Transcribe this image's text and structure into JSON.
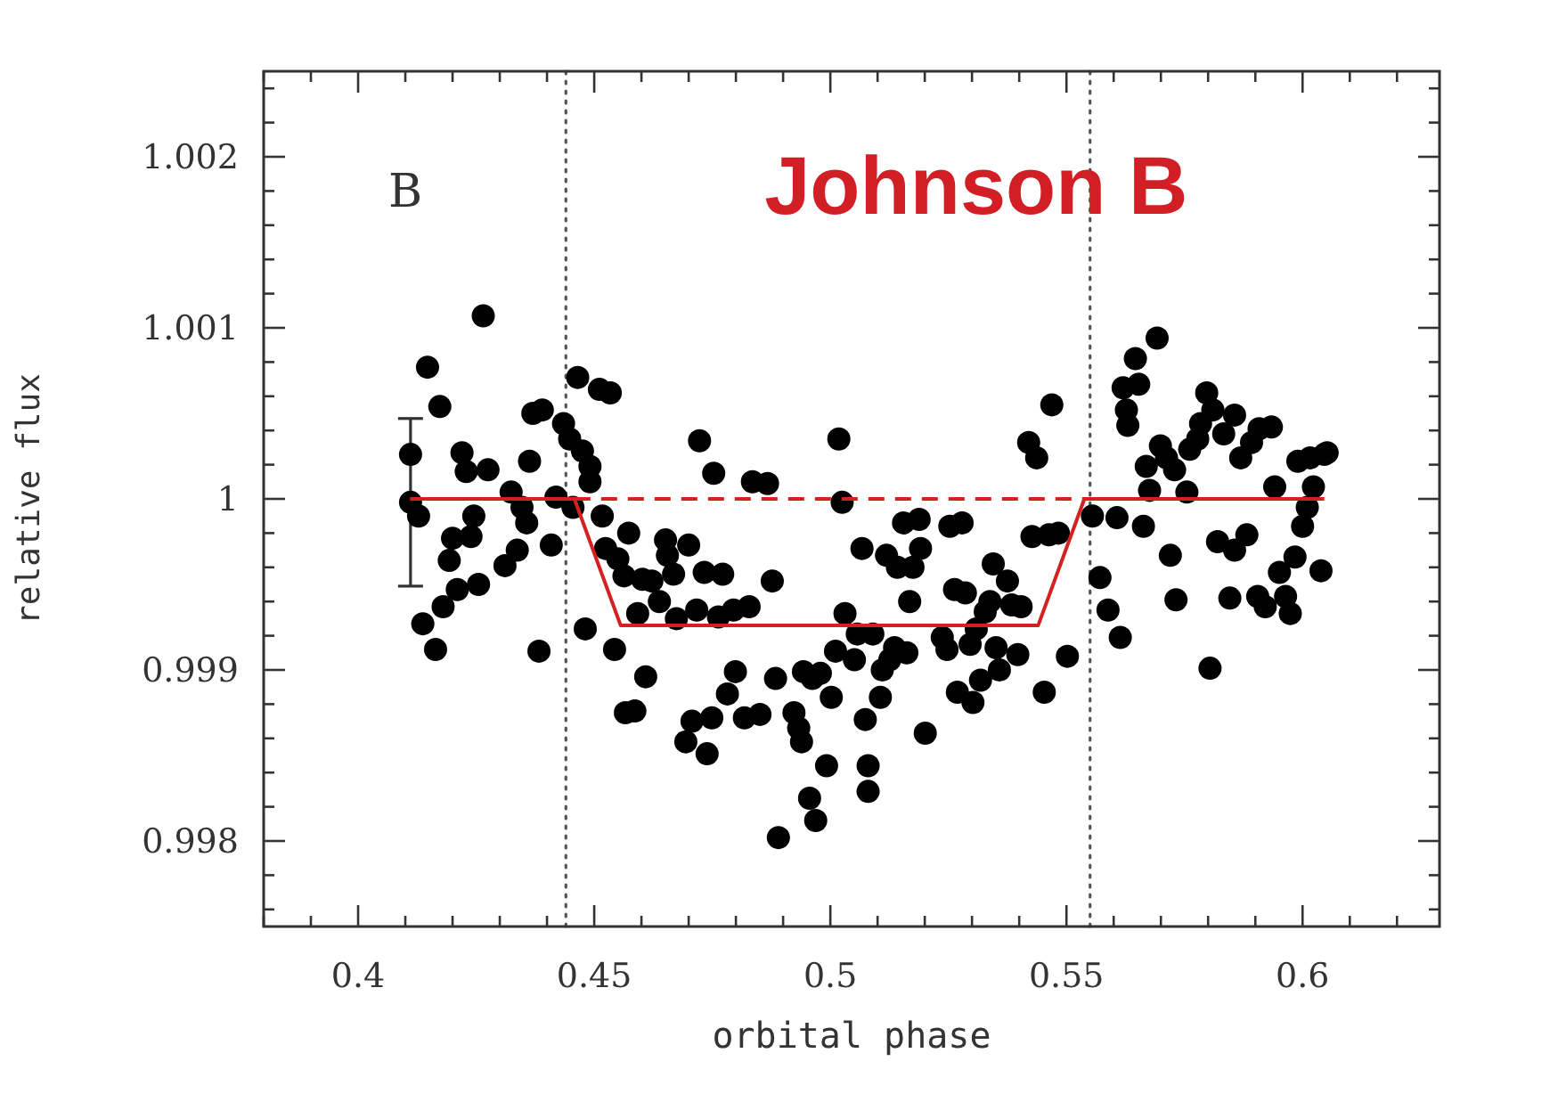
{
  "chart_data": {
    "type": "scatter",
    "title": "Johnson B",
    "xlabel": "orbital phase",
    "ylabel": "relative flux",
    "annotations": [
      "B"
    ],
    "xlim": [
      0.38,
      0.629
    ],
    "ylim": [
      0.9975,
      1.0025
    ],
    "xticks": [
      {
        "value": 0.38,
        "label": null
      },
      {
        "value": 0.39,
        "label": null
      },
      0.4,
      {
        "value": 0.41,
        "label": null
      },
      {
        "value": 0.42,
        "label": null
      },
      {
        "value": 0.43,
        "label": null
      },
      {
        "value": 0.44,
        "label": null
      },
      0.45,
      {
        "value": 0.46,
        "label": null
      },
      {
        "value": 0.47,
        "label": null
      },
      {
        "value": 0.48,
        "label": null
      },
      {
        "value": 0.49,
        "label": null
      },
      0.5,
      {
        "value": 0.51,
        "label": null
      },
      {
        "value": 0.52,
        "label": null
      },
      {
        "value": 0.53,
        "label": null
      },
      {
        "value": 0.54,
        "label": null
      },
      0.55,
      {
        "value": 0.56,
        "label": null
      },
      {
        "value": 0.57,
        "label": null
      },
      {
        "value": 0.58,
        "label": null
      },
      {
        "value": 0.59,
        "label": null
      },
      0.6,
      {
        "value": 0.61,
        "label": null
      },
      {
        "value": 0.62,
        "label": null
      }
    ],
    "yticks": [
      {
        "value": 0.9976,
        "label": null
      },
      {
        "value": 0.9978,
        "label": null
      },
      0.998,
      {
        "value": 0.9982,
        "label": null
      },
      {
        "value": 0.9984,
        "label": null
      },
      {
        "value": 0.9986,
        "label": null
      },
      {
        "value": 0.9988,
        "label": null
      },
      0.999,
      {
        "value": 0.9992,
        "label": null
      },
      {
        "value": 0.9994,
        "label": null
      },
      {
        "value": 0.9996,
        "label": null
      },
      {
        "value": 0.9998,
        "label": null
      },
      1,
      {
        "value": 1.0002,
        "label": null
      },
      {
        "value": 1.0004,
        "label": null
      },
      {
        "value": 1.0006,
        "label": null
      },
      {
        "value": 1.0008,
        "label": null
      },
      1.001,
      {
        "value": 1.0012,
        "label": null
      },
      {
        "value": 1.0014,
        "label": null
      },
      {
        "value": 1.0016,
        "label": null
      },
      {
        "value": 1.0018,
        "label": null
      },
      1.002,
      {
        "value": 1.0022,
        "label": null
      },
      {
        "value": 1.0024,
        "label": null
      }
    ],
    "grid": false,
    "ref_lines": [
      {
        "axis": "x",
        "value": 0.444,
        "color": "#555555",
        "line_style": "dotted"
      },
      {
        "axis": "x",
        "value": 0.555,
        "color": "#555555",
        "line_style": "dotted"
      }
    ],
    "series": [
      {
        "color": "#000000",
        "marker": "circle",
        "errors": [
          null,
          0.00049,
          null,
          null,
          null,
          null,
          null,
          null,
          null,
          null,
          null,
          null,
          null,
          null,
          null,
          null,
          null,
          null,
          null,
          null,
          null,
          null,
          null,
          null,
          null,
          null,
          null,
          null,
          null,
          null,
          null,
          null,
          null,
          null,
          null,
          null,
          null,
          null,
          null,
          null,
          null,
          null,
          null,
          null,
          null,
          null,
          null,
          null,
          null,
          null,
          null,
          null,
          null,
          null,
          null,
          null,
          null,
          null,
          null,
          null,
          null,
          null,
          null,
          null,
          null,
          null,
          null,
          null,
          null,
          null,
          null,
          null,
          null,
          null,
          null,
          null,
          null,
          null,
          null,
          null,
          null,
          null,
          null,
          null,
          null,
          null,
          null,
          null,
          null,
          null,
          null,
          null,
          null,
          null,
          null,
          null,
          null,
          null,
          null,
          null,
          null,
          null,
          null,
          null,
          null,
          null,
          null,
          null,
          null,
          null,
          null,
          null,
          null,
          null,
          null,
          null,
          null,
          null,
          null,
          null,
          null,
          null,
          null,
          null,
          null,
          null,
          null,
          null,
          null,
          null,
          null,
          null,
          null,
          null,
          null,
          null,
          null,
          null,
          null,
          null,
          null,
          null,
          null,
          null,
          null,
          null,
          null,
          null,
          null,
          null,
          null,
          null,
          null,
          null,
          null,
          null,
          null,
          null,
          null,
          null,
          null,
          null,
          null,
          null,
          null,
          null,
          null,
          null,
          null,
          null,
          null,
          null,
          null,
          null,
          null,
          null,
          null,
          null,
          null,
          null,
          null,
          null,
          null,
          null,
          null,
          null,
          null,
          null,
          null,
          null,
          null
        ],
        "x": [
          0.4111,
          0.4111,
          0.4128,
          0.4147,
          0.4137,
          0.4164,
          0.4173,
          0.418,
          0.4193,
          0.42,
          0.421,
          0.422,
          0.4229,
          0.4239,
          0.4245,
          0.4255,
          0.4265,
          0.4275,
          0.4311,
          0.4324,
          0.4337,
          0.4347,
          0.4357,
          0.4363,
          0.437,
          0.439,
          0.4383,
          0.4409,
          0.4419,
          0.4435,
          0.4448,
          0.4455,
          0.4465,
          0.4475,
          0.4491,
          0.4491,
          0.4481,
          0.4511,
          0.4534,
          0.4517,
          0.4524,
          0.4543,
          0.455,
          0.4563,
          0.4573,
          0.4592,
          0.4602,
          0.4609,
          0.4566,
          0.4586,
          0.4622,
          0.4638,
          0.4651,
          0.4655,
          0.4668,
          0.4674,
          0.4694,
          0.4707,
          0.47,
          0.4723,
          0.4717,
          0.4733,
          0.4739,
          0.4749,
          0.4753,
          0.4763,
          0.4772,
          0.4782,
          0.4795,
          0.4799,
          0.4818,
          0.4828,
          0.4835,
          0.4851,
          0.4867,
          0.4877,
          0.4884,
          0.489,
          0.4923,
          0.4933,
          0.4939,
          0.4943,
          0.4956,
          0.4969,
          0.4962,
          0.4979,
          0.4992,
          0.5002,
          0.5011,
          0.5018,
          0.5025,
          0.5031,
          0.5051,
          0.5057,
          0.5067,
          0.5074,
          0.508,
          0.508,
          0.509,
          0.5106,
          0.511,
          0.5119,
          0.5126,
          0.5136,
          0.5142,
          0.5155,
          0.5162,
          0.5168,
          0.5175,
          0.5188,
          0.5191,
          0.5201,
          0.5237,
          0.5247,
          0.5253,
          0.5263,
          0.5269,
          0.5279,
          0.5286,
          0.5296,
          0.5302,
          0.5309,
          0.5318,
          0.5328,
          0.5338,
          0.5345,
          0.5351,
          0.5358,
          0.5375,
          0.5384,
          0.5397,
          0.5404,
          0.542,
          0.5437,
          0.5427,
          0.5453,
          0.5469,
          0.5463,
          0.5483,
          0.5502,
          0.5555,
          0.5571,
          0.5588,
          0.5607,
          0.5614,
          0.562,
          0.5627,
          0.563,
          0.5646,
          0.5653,
          0.5663,
          0.5669,
          0.5676,
          0.5692,
          0.5699,
          0.5712,
          0.572,
          0.5729,
          0.5732,
          0.5755,
          0.5761,
          0.5778,
          0.5784,
          0.5797,
          0.5804,
          0.581,
          0.582,
          0.5833,
          0.5846,
          0.5856,
          0.5856,
          0.5869,
          0.5882,
          0.5892,
          0.5905,
          0.5908,
          0.5921,
          0.5934,
          0.5941,
          0.5951,
          0.5964,
          0.5974,
          0.5984,
          0.599,
          0.6,
          0.601,
          0.6016,
          0.6023,
          0.6039,
          0.6046,
          0.6052
        ],
        "values": [
          1.00026,
          0.99998,
          0.9999,
          1.00077,
          0.99927,
          0.99912,
          1.00054,
          0.99937,
          0.99964,
          0.99977,
          0.99947,
          1.00027,
          1.00016,
          0.99978,
          0.9999,
          0.9995,
          1.00107,
          1.00017,
          0.99961,
          1.00004,
          0.9997,
          0.99995,
          0.99986,
          1.00022,
          1.0005,
          1.00052,
          0.99911,
          0.99973,
          1.00001,
          1.00044,
          1.00035,
          0.99995,
          1.00071,
          1.00028,
          1.00019,
          1.0001,
          0.99924,
          1.00064,
          1.00062,
          0.9999,
          0.99971,
          0.99912,
          0.99965,
          0.99955,
          0.9998,
          0.99933,
          0.99953,
          0.99896,
          0.99875,
          0.99876,
          0.99952,
          0.9994,
          0.99976,
          0.99967,
          0.99956,
          0.9993,
          0.99858,
          0.9987,
          0.99973,
          1.00034,
          0.99935,
          0.99957,
          0.99851,
          0.99872,
          1.00015,
          0.99931,
          0.99956,
          0.99886,
          0.99935,
          0.99899,
          0.99872,
          0.99937,
          1.0001,
          0.99874,
          1.00009,
          0.99952,
          0.99895,
          0.99802,
          0.99875,
          0.99866,
          0.99858,
          0.99899,
          0.99825,
          0.99812,
          0.99895,
          0.99898,
          0.99844,
          0.99884,
          0.99911,
          1.00035,
          0.99998,
          0.99933,
          0.99906,
          0.99921,
          0.99971,
          0.99871,
          0.99844,
          0.99829,
          0.99921,
          0.99884,
          0.999,
          0.99967,
          0.99906,
          0.99913,
          0.9996,
          0.99986,
          0.9991,
          0.9994,
          0.9996,
          0.99988,
          0.99971,
          0.99863,
          0.99919,
          0.99912,
          0.99984,
          0.99947,
          0.99887,
          0.99986,
          0.99945,
          0.99915,
          0.99881,
          0.99924,
          0.99894,
          0.99934,
          0.9994,
          0.99962,
          0.99913,
          0.999,
          0.99952,
          0.99938,
          0.99909,
          0.99937,
          1.00033,
          1.00024,
          0.99978,
          0.99887,
          1.00055,
          0.99979,
          0.9998,
          0.99908,
          0.9999,
          0.99954,
          0.99935,
          0.99989,
          0.99919,
          1.00065,
          1.00052,
          1.00043,
          1.00082,
          1.00067,
          0.99984,
          1.00019,
          1.00005,
          1.00094,
          1.00031,
          1.00024,
          0.99967,
          1.00017,
          0.99941,
          1.00004,
          1.00029,
          1.00035,
          1.00044,
          1.00062,
          0.99901,
          1.00052,
          0.99975,
          1.00038,
          0.99942,
          1.00049,
          0.9997,
          1.00024,
          0.99979,
          1.00033,
          0.99943,
          1.00041,
          0.99937,
          1.00042,
          1.00007,
          0.99957,
          0.99943,
          0.99933,
          0.99966,
          1.00022,
          0.99984,
          0.99995,
          1.00024,
          1.00007,
          0.99958,
          1.00026,
          1.00027
        ]
      },
      {
        "type": "line",
        "color": "#d42020",
        "line_style": "solid",
        "x": [
          0.411,
          0.4458,
          0.4556,
          0.544,
          0.5538,
          0.6046
        ],
        "values": [
          1,
          1,
          0.99926,
          0.99926,
          1,
          1
        ]
      },
      {
        "type": "line",
        "color": "#d42020",
        "line_style": "dashed",
        "x": [
          0.4458,
          0.5538
        ],
        "values": [
          1,
          1
        ]
      }
    ]
  }
}
